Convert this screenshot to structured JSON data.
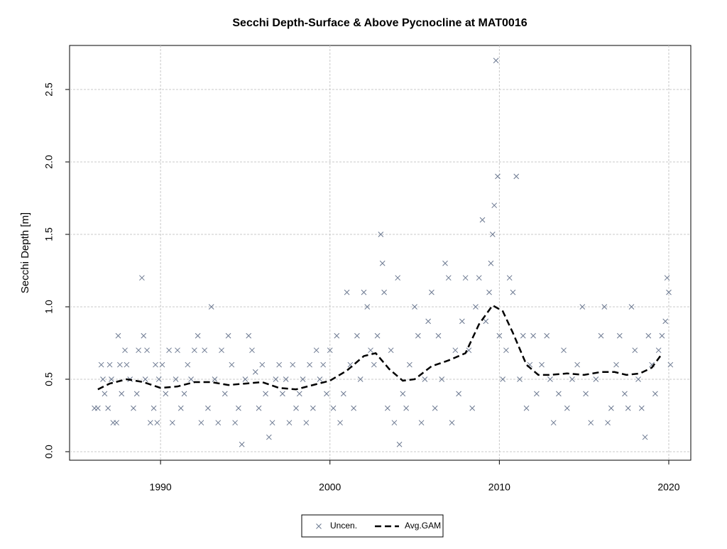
{
  "chart_data": {
    "type": "scatter",
    "title": "Secchi Depth-Surface & Above Pycnocline at MAT0016",
    "ylabel": "Secchi Depth [m]",
    "xlim": [
      1984.63,
      2021.3
    ],
    "ylim": [
      -0.059,
      2.804
    ],
    "xticks": [
      1990,
      2000,
      2010,
      2020
    ],
    "yticks": [
      {
        "value": 0,
        "label": "0.0"
      },
      0.5,
      {
        "value": 1,
        "label": "1.0"
      },
      1.5,
      {
        "value": 2,
        "label": "2.0"
      },
      2.5
    ],
    "grid": true,
    "legend": "bottom",
    "series": [
      {
        "name": "Uncen.",
        "type": "scatter",
        "color": "#6b7890",
        "x": [
          1986.1,
          1986.3,
          1986.5,
          1986.6,
          1986.7,
          1986.9,
          1987.0,
          1987.1,
          1987.2,
          1987.4,
          1987.5,
          1987.6,
          1987.7,
          1987.9,
          1988.0,
          1988.2,
          1988.4,
          1988.6,
          1988.7,
          1988.9,
          1989.0,
          1989.1,
          1989.2,
          1989.4,
          1989.6,
          1989.7,
          1989.8,
          1989.9,
          1990.1,
          1990.3,
          1990.5,
          1990.7,
          1990.9,
          1991.0,
          1991.2,
          1991.4,
          1991.6,
          1991.8,
          1992.0,
          1992.2,
          1992.4,
          1992.6,
          1992.8,
          1993.0,
          1993.2,
          1993.4,
          1993.6,
          1993.8,
          1994.0,
          1994.2,
          1994.4,
          1994.6,
          1994.8,
          1995.0,
          1995.2,
          1995.4,
          1995.6,
          1995.8,
          1996.0,
          1996.2,
          1996.4,
          1996.6,
          1996.8,
          1997.0,
          1997.2,
          1997.4,
          1997.6,
          1997.8,
          1998.0,
          1998.2,
          1998.4,
          1998.6,
          1998.8,
          1999.0,
          1999.2,
          1999.4,
          1999.6,
          1999.8,
          2000.0,
          2000.2,
          2000.4,
          2000.6,
          2000.8,
          2001.0,
          2001.2,
          2001.4,
          2001.6,
          2001.8,
          2002.0,
          2002.2,
          2002.4,
          2002.6,
          2002.8,
          2003.0,
          2003.1,
          2003.2,
          2003.4,
          2003.6,
          2003.8,
          2004.0,
          2004.1,
          2004.3,
          2004.5,
          2004.7,
          2005.0,
          2005.2,
          2005.4,
          2005.6,
          2005.8,
          2006.0,
          2006.2,
          2006.4,
          2006.6,
          2006.8,
          2007.0,
          2007.2,
          2007.4,
          2007.6,
          2007.8,
          2008.0,
          2008.2,
          2008.4,
          2008.6,
          2008.8,
          2009.0,
          2009.2,
          2009.4,
          2009.5,
          2009.6,
          2009.7,
          2009.8,
          2009.9,
          2010.0,
          2010.2,
          2010.4,
          2010.6,
          2010.8,
          2011.0,
          2011.2,
          2011.4,
          2011.6,
          2011.8,
          2012.0,
          2012.2,
          2012.5,
          2012.8,
          2013.0,
          2013.2,
          2013.5,
          2013.8,
          2014.0,
          2014.3,
          2014.6,
          2014.9,
          2015.1,
          2015.4,
          2015.7,
          2016.0,
          2016.2,
          2016.4,
          2016.6,
          2016.9,
          2017.1,
          2017.4,
          2017.6,
          2017.8,
          2018.0,
          2018.2,
          2018.4,
          2018.6,
          2018.8,
          2019.0,
          2019.2,
          2019.4,
          2019.6,
          2019.8,
          2019.9,
          2020.0,
          2020.1
        ],
        "values": [
          0.3,
          0.3,
          0.6,
          0.5,
          0.4,
          0.3,
          0.6,
          0.5,
          0.2,
          0.2,
          0.8,
          0.6,
          0.4,
          0.7,
          0.6,
          0.5,
          0.3,
          0.4,
          0.7,
          1.2,
          0.8,
          0.5,
          0.7,
          0.2,
          0.3,
          0.6,
          0.2,
          0.5,
          0.6,
          0.4,
          0.7,
          0.2,
          0.5,
          0.7,
          0.3,
          0.4,
          0.6,
          0.5,
          0.7,
          0.8,
          0.2,
          0.7,
          0.3,
          1.0,
          0.5,
          0.2,
          0.7,
          0.4,
          0.8,
          0.6,
          0.2,
          0.3,
          0.05,
          0.5,
          0.8,
          0.7,
          0.55,
          0.3,
          0.6,
          0.4,
          0.1,
          0.2,
          0.5,
          0.6,
          0.4,
          0.5,
          0.2,
          0.6,
          0.3,
          0.4,
          0.5,
          0.2,
          0.6,
          0.3,
          0.7,
          0.5,
          0.6,
          0.4,
          0.7,
          0.3,
          0.8,
          0.2,
          0.4,
          1.1,
          0.6,
          0.3,
          0.8,
          0.5,
          1.1,
          1.0,
          0.7,
          0.6,
          0.8,
          1.5,
          1.3,
          1.1,
          0.3,
          0.7,
          0.2,
          1.2,
          0.05,
          0.4,
          0.3,
          0.6,
          1.0,
          0.8,
          0.2,
          0.5,
          0.9,
          1.1,
          0.3,
          0.8,
          0.5,
          1.3,
          1.2,
          0.2,
          0.7,
          0.4,
          0.9,
          1.2,
          0.7,
          0.3,
          1.0,
          1.2,
          1.6,
          0.9,
          1.1,
          1.3,
          1.5,
          1.7,
          2.7,
          1.9,
          0.8,
          0.5,
          0.7,
          1.2,
          1.1,
          1.9,
          0.5,
          0.8,
          0.3,
          0.6,
          0.8,
          0.4,
          0.6,
          0.8,
          0.5,
          0.2,
          0.4,
          0.7,
          0.3,
          0.5,
          0.6,
          1.0,
          0.4,
          0.2,
          0.5,
          0.8,
          1.0,
          0.2,
          0.3,
          0.6,
          0.8,
          0.4,
          0.3,
          1.0,
          0.7,
          0.5,
          0.3,
          0.1,
          0.8,
          0.6,
          0.4,
          0.7,
          0.8,
          0.9,
          1.2,
          1.1,
          0.6
        ]
      },
      {
        "name": "Avg.GAM",
        "type": "line",
        "color": "#000000",
        "x": [
          1986.3,
          1987,
          1988,
          1989,
          1990,
          1991,
          1992,
          1993,
          1994,
          1995,
          1996,
          1997,
          1998,
          1999,
          2000,
          2001,
          2002,
          2002.7,
          2003.5,
          2004.3,
          2005,
          2006,
          2007,
          2008,
          2008.8,
          2009.6,
          2010.2,
          2010.8,
          2011.6,
          2012.3,
          2013,
          2014,
          2015,
          2016,
          2016.8,
          2017.5,
          2018.3,
          2019,
          2019.5
        ],
        "values": [
          0.43,
          0.47,
          0.5,
          0.48,
          0.44,
          0.45,
          0.48,
          0.48,
          0.46,
          0.47,
          0.48,
          0.44,
          0.43,
          0.46,
          0.49,
          0.56,
          0.66,
          0.68,
          0.57,
          0.49,
          0.5,
          0.59,
          0.63,
          0.68,
          0.88,
          1.01,
          0.97,
          0.82,
          0.6,
          0.53,
          0.53,
          0.54,
          0.53,
          0.55,
          0.55,
          0.53,
          0.54,
          0.58,
          0.66
        ]
      }
    ]
  }
}
